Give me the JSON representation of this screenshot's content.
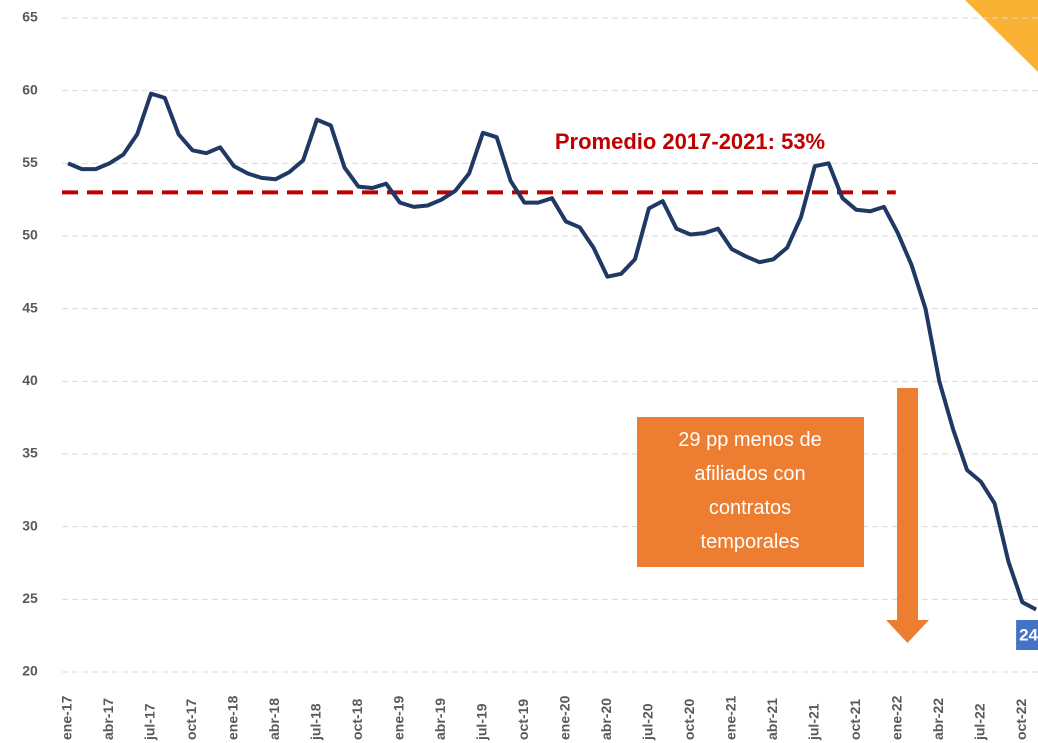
{
  "chart_data": {
    "type": "line",
    "categories": [
      "ene-17",
      null,
      null,
      "abr-17",
      null,
      null,
      "jul-17",
      null,
      null,
      "oct-17",
      null,
      null,
      "ene-18",
      null,
      null,
      "abr-18",
      null,
      null,
      "jul-18",
      null,
      null,
      "oct-18",
      null,
      null,
      "ene-19",
      null,
      null,
      "abr-19",
      null,
      null,
      "jul-19",
      null,
      null,
      "oct-19",
      null,
      null,
      "ene-20",
      null,
      null,
      "abr-20",
      null,
      null,
      "jul-20",
      null,
      null,
      "oct-20",
      null,
      null,
      "ene-21",
      null,
      null,
      "abr-21",
      null,
      null,
      "jul-21",
      null,
      null,
      "oct-21",
      null,
      null,
      "ene-22",
      null,
      null,
      "abr-22",
      null,
      null,
      "jul-22",
      null,
      null,
      "oct-22",
      null
    ],
    "series": [
      {
        "color": "#1f3864",
        "values": [
          55.0,
          54.6,
          54.6,
          55.0,
          55.6,
          57.0,
          59.8,
          59.5,
          57.0,
          55.9,
          55.7,
          56.1,
          54.8,
          54.3,
          54.0,
          53.9,
          54.4,
          55.2,
          58.0,
          57.6,
          54.7,
          53.4,
          53.3,
          53.6,
          52.3,
          52.0,
          52.1,
          52.5,
          53.1,
          54.3,
          57.1,
          56.8,
          53.8,
          52.3,
          52.3,
          52.6,
          51.0,
          50.6,
          49.2,
          47.2,
          47.4,
          48.4,
          51.9,
          52.4,
          50.5,
          50.1,
          50.2,
          50.5,
          49.1,
          48.6,
          48.2,
          48.4,
          49.2,
          51.3,
          54.8,
          55.0,
          52.6,
          51.8,
          51.7,
          52.0,
          50.2,
          48.0,
          45.0,
          40.0,
          36.7,
          33.9,
          33.1,
          31.6,
          27.6,
          24.8,
          24.3
        ],
        "value_labels": [
          null,
          null,
          null,
          null,
          null,
          null,
          null,
          null,
          null,
          null,
          null,
          null,
          null,
          null,
          null,
          null,
          null,
          null,
          null,
          null,
          null,
          null,
          null,
          null,
          null,
          null,
          null,
          null,
          null,
          null,
          null,
          null,
          null,
          null,
          null,
          null,
          null,
          null,
          null,
          null,
          null,
          null,
          null,
          null,
          null,
          null,
          null,
          null,
          null,
          null,
          null,
          null,
          null,
          null,
          null,
          null,
          null,
          null,
          null,
          null,
          null,
          null,
          null,
          null,
          null,
          null,
          null,
          null,
          null,
          null,
          "24"
        ]
      }
    ],
    "reference": {
      "value": 53,
      "label": "Promedio 2017-2021: 53%",
      "color": "#c00000"
    },
    "annotation": "29 pp menos de afiliados con contratos temporales",
    "ylim": [
      20,
      65
    ],
    "yticks": [
      20,
      25,
      30,
      35,
      40,
      45,
      50,
      55,
      60,
      65
    ],
    "grid": true
  }
}
